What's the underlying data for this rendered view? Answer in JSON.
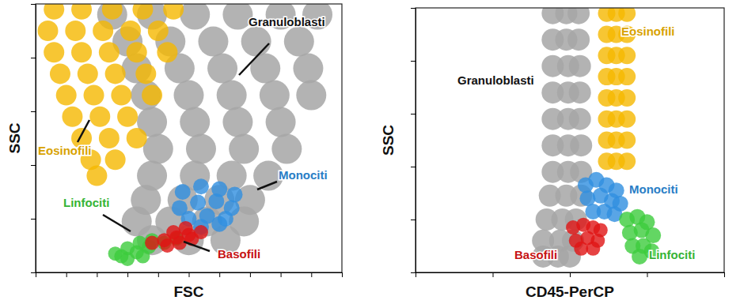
{
  "chart_data": [
    {
      "type": "scatter",
      "x_label": "FSC",
      "y_label": "SSC",
      "xlim": [
        0,
        1000
      ],
      "ylim": [
        0,
        1000
      ],
      "xticks": [
        0,
        100,
        200,
        300,
        400,
        500,
        600,
        700,
        800,
        900,
        1000
      ],
      "yticks": [
        0,
        200,
        400,
        600,
        800,
        1000
      ],
      "tick_labels": false,
      "series": [
        {
          "name": "Granuloblasti",
          "color": "#a6a6a6",
          "x": [
            250,
            380,
            520,
            660,
            800,
            920,
            300,
            440,
            580,
            720,
            860,
            330,
            470,
            610,
            750,
            890,
            360,
            500,
            640,
            780,
            900,
            380,
            520,
            660,
            800,
            400,
            540,
            680,
            820,
            380,
            520,
            640,
            760,
            360,
            480,
            600,
            700,
            330,
            440,
            560,
            680,
            380,
            500,
            620
          ],
          "values": [
            960,
            960,
            960,
            960,
            960,
            960,
            860,
            860,
            860,
            860,
            860,
            760,
            760,
            760,
            760,
            760,
            660,
            660,
            660,
            660,
            660,
            560,
            560,
            560,
            560,
            460,
            460,
            460,
            460,
            360,
            360,
            360,
            360,
            270,
            270,
            270,
            270,
            190,
            190,
            190,
            190,
            120,
            120,
            120
          ]
        },
        {
          "name": "Eosinofili",
          "color": "#f5b800",
          "x": [
            60,
            150,
            250,
            350,
            450,
            40,
            130,
            220,
            310,
            400,
            60,
            150,
            240,
            330,
            430,
            80,
            170,
            260,
            360,
            100,
            190,
            280,
            380,
            120,
            210,
            300,
            150,
            240,
            330,
            180,
            260,
            200
          ],
          "values": [
            980,
            980,
            980,
            980,
            980,
            900,
            900,
            900,
            900,
            900,
            820,
            820,
            820,
            820,
            820,
            740,
            740,
            740,
            740,
            660,
            660,
            660,
            660,
            580,
            580,
            580,
            500,
            500,
            500,
            420,
            420,
            360
          ]
        },
        {
          "name": "Monociti",
          "color": "#2f8fe0",
          "x": [
            480,
            540,
            600,
            650,
            470,
            530,
            590,
            640,
            500,
            560,
            620,
            540,
            600
          ],
          "values": [
            300,
            320,
            310,
            290,
            240,
            260,
            265,
            240,
            200,
            210,
            200,
            170,
            180
          ]
        },
        {
          "name": "Linfociti",
          "color": "#3ccc3c",
          "x": [
            260,
            300,
            340,
            380,
            280,
            330,
            370,
            420,
            460,
            300,
            350
          ],
          "values": [
            70,
            90,
            110,
            120,
            60,
            75,
            95,
            110,
            125,
            50,
            60
          ]
        },
        {
          "name": "Basofili",
          "color": "#e01414",
          "x": [
            380,
            420,
            460,
            500,
            540,
            430,
            470,
            510,
            450,
            490
          ],
          "values": [
            110,
            120,
            130,
            140,
            150,
            100,
            110,
            125,
            150,
            165
          ]
        }
      ]
    },
    {
      "type": "scatter",
      "x_label": "CD45-PerCP",
      "y_label": "SSC",
      "log": "x",
      "xlim": [
        1,
        10000
      ],
      "ylim": [
        0,
        1000
      ],
      "xticks": [
        1,
        10,
        100,
        1000,
        10000
      ],
      "yticks": [
        0,
        200,
        400,
        600,
        800,
        1000
      ],
      "tick_labels": false,
      "series": [
        {
          "name": "Granuloblasti",
          "color": "#a6a6a6",
          "x": [
            60,
            90,
            130,
            60,
            90,
            130,
            60,
            95,
            135,
            60,
            95,
            135,
            60,
            95,
            135,
            60,
            95,
            140,
            60,
            95,
            140,
            55,
            90,
            140,
            50,
            80,
            120,
            45,
            75,
            110,
            45,
            70,
            100
          ],
          "values": [
            980,
            980,
            980,
            880,
            880,
            880,
            780,
            780,
            780,
            680,
            680,
            680,
            580,
            580,
            580,
            480,
            480,
            480,
            380,
            380,
            380,
            290,
            290,
            290,
            200,
            200,
            200,
            120,
            120,
            120,
            60,
            60,
            60
          ]
        },
        {
          "name": "Eosinofili",
          "color": "#f5b800",
          "x": [
            300,
            400,
            550,
            300,
            400,
            550,
            300,
            400,
            550,
            300,
            400,
            550,
            300,
            400,
            550,
            300,
            400,
            550,
            300,
            400,
            550,
            300,
            400,
            550
          ],
          "values": [
            980,
            980,
            980,
            900,
            900,
            900,
            820,
            820,
            820,
            740,
            740,
            740,
            660,
            660,
            660,
            580,
            580,
            580,
            500,
            500,
            500,
            420,
            420,
            420
          ]
        },
        {
          "name": "Monociti",
          "color": "#2f8fe0",
          "x": [
            160,
            220,
            300,
            400,
            170,
            250,
            350,
            450,
            200,
            280,
            380
          ],
          "values": [
            330,
            350,
            330,
            310,
            280,
            290,
            270,
            260,
            230,
            230,
            220
          ]
        },
        {
          "name": "Basofili",
          "color": "#e01414",
          "x": [
            110,
            150,
            200,
            250,
            120,
            170,
            230,
            140,
            200
          ],
          "values": [
            170,
            180,
            170,
            160,
            120,
            130,
            120,
            90,
            90
          ]
        },
        {
          "name": "Linfociti",
          "color": "#3ccc3c",
          "x": [
            550,
            750,
            1000,
            600,
            850,
            1200,
            650,
            900,
            1150,
            800
          ],
          "values": [
            200,
            210,
            190,
            150,
            160,
            140,
            100,
            100,
            80,
            60
          ]
        }
      ]
    }
  ]
}
